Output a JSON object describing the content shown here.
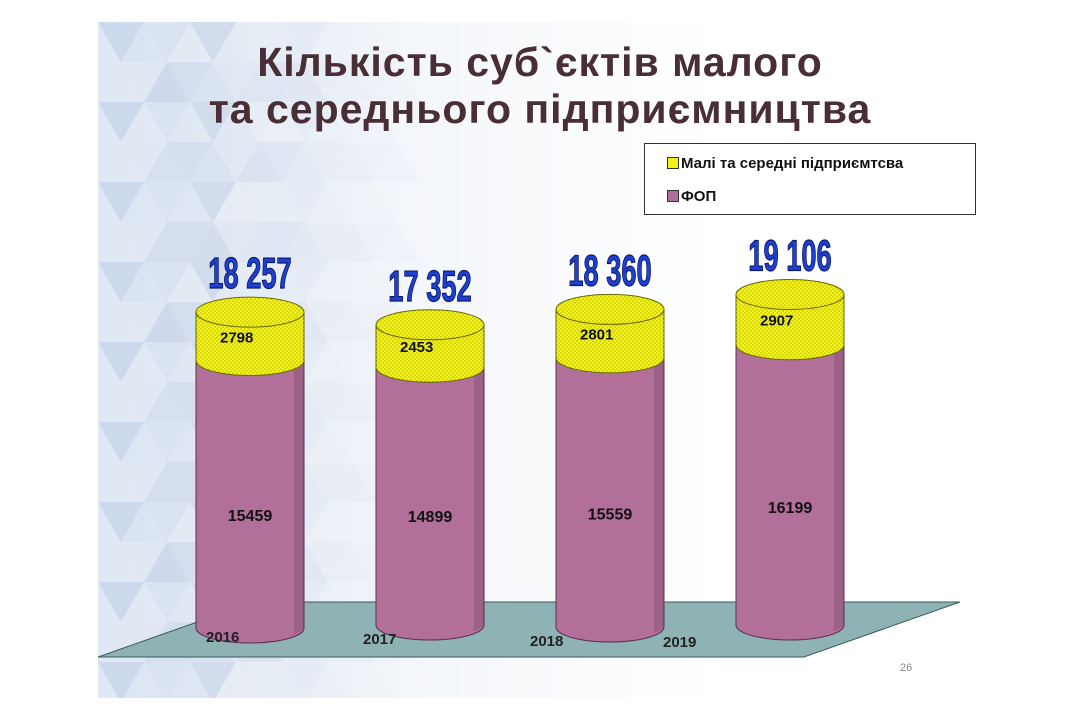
{
  "title_line1": "Кількість суб`єктів малого",
  "title_line2": "та середнього підприємництва",
  "slide_number": "26",
  "colors": {
    "fop_fill": "#b16f9a",
    "small_medium_fill": "#f2f21a",
    "total_label": "#1f3fd0",
    "title": "#4a2e36",
    "floor": "#8fb3b4"
  },
  "chart_data": {
    "type": "bar",
    "stacked": true,
    "shape": "cylinder",
    "categories": [
      "2016",
      "2017",
      "2018",
      "2019"
    ],
    "series": [
      {
        "name": "ФОП",
        "values": [
          15459,
          14899,
          15559,
          16199
        ],
        "color": "#b16f9a"
      },
      {
        "name": "Малі та середні підприємтсва",
        "values": [
          2798,
          2453,
          2801,
          2907
        ],
        "color": "#f2f21a"
      }
    ],
    "totals": [
      "18 257",
      "17 352",
      "18 360",
      "19 106"
    ],
    "value_labels": {
      "fop": [
        "15459",
        "14899",
        "15559",
        "16199"
      ],
      "small_medium": [
        "2798",
        "2453",
        "2801",
        "2907"
      ]
    },
    "legend": [
      "Малі та середні підприємтсва",
      "ФОП"
    ],
    "legend_position": "top-right",
    "grid": false
  }
}
